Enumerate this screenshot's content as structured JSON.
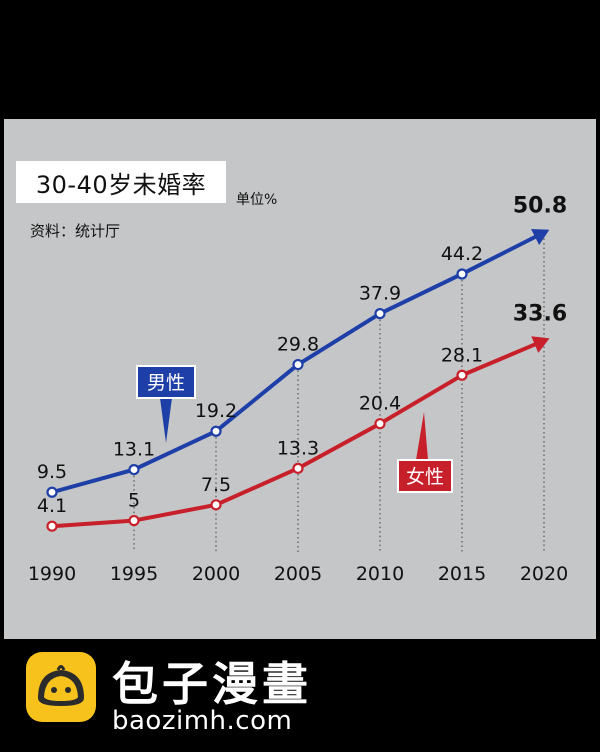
{
  "chart_data": {
    "type": "line",
    "title": "30-40岁未婚率",
    "unit": "单位%",
    "source": "资料：统计厅",
    "categories": [
      "1990",
      "1995",
      "2000",
      "2005",
      "2010",
      "2015",
      "2020"
    ],
    "ylim": [
      0,
      55
    ],
    "grid": false,
    "series": [
      {
        "name": "男性",
        "values": [
          9.5,
          13.1,
          19.2,
          29.8,
          37.9,
          44.2,
          50.8
        ],
        "labels": [
          "9.5",
          "13.1",
          "19.2",
          "29.8",
          "37.9",
          "44.2",
          "50.8"
        ],
        "color": "#1f3fa8"
      },
      {
        "name": "女性",
        "values": [
          4.1,
          5,
          7.5,
          13.3,
          20.4,
          28.1,
          33.6
        ],
        "labels": [
          "4.1",
          "5",
          "7.5",
          "13.3",
          "20.4",
          "28.1",
          "33.6"
        ],
        "color": "#c8202a"
      }
    ]
  },
  "colors": {
    "background": "#000000",
    "panel": "#c5c6c8",
    "male": "#1f3fa8",
    "female": "#c8202a"
  },
  "footer": {
    "brand_name": "包子漫畫",
    "brand_url": "baozimh.com",
    "logo_icon": "bun-mascot-icon"
  }
}
